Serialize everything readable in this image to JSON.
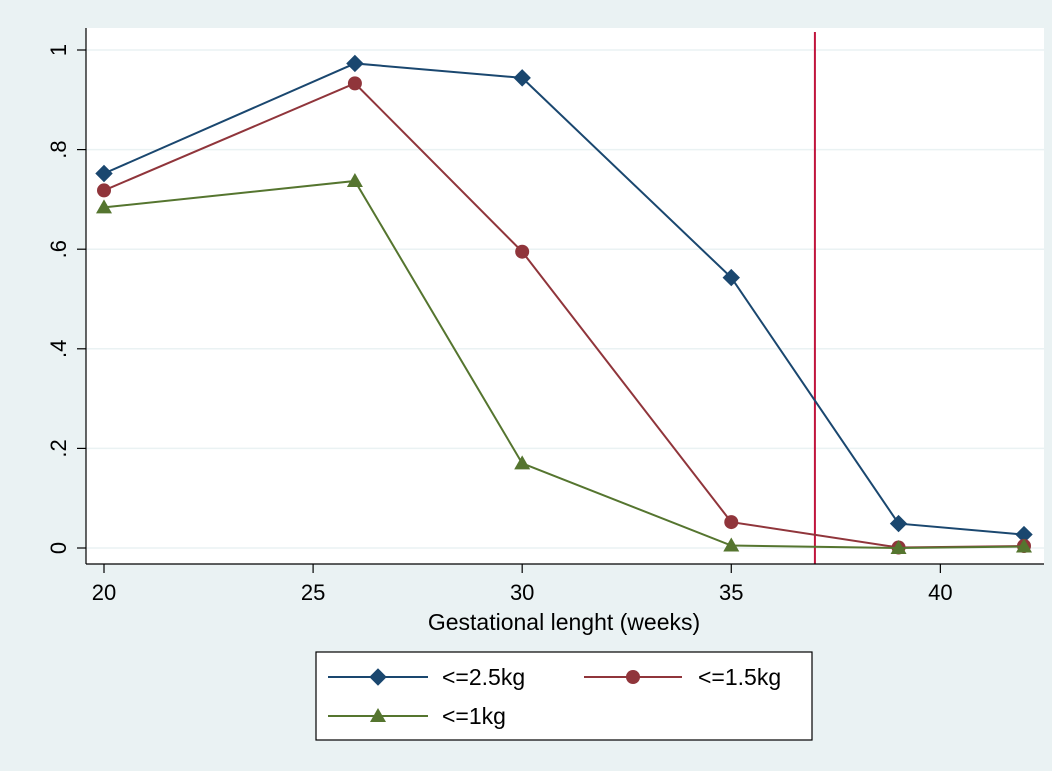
{
  "chart_data": {
    "type": "line",
    "title": "",
    "xlabel": "Gestational lenght (weeks)",
    "ylabel": "",
    "xlim": [
      20,
      42
    ],
    "ylim": [
      0,
      1
    ],
    "x_ticks": [
      20,
      25,
      30,
      35,
      40
    ],
    "x_tick_labels": [
      "20",
      "25",
      "30",
      "35",
      "40"
    ],
    "y_ticks": [
      0,
      0.2,
      0.4,
      0.6,
      0.8,
      1
    ],
    "y_tick_labels": [
      "0",
      ".2",
      ".4",
      ".6",
      ".8",
      "1"
    ],
    "grid": "horizontal",
    "reference_line": {
      "x": 37,
      "color": "#c0143c"
    },
    "legend": {
      "position": "bottom"
    },
    "series": [
      {
        "name": "<=2.5kg",
        "marker": "diamond",
        "color": "#1a476f",
        "x": [
          20,
          26,
          30,
          35,
          39,
          42
        ],
        "y": [
          0.752,
          0.973,
          0.944,
          0.543,
          0.049,
          0.027
        ]
      },
      {
        "name": "<=1.5kg",
        "marker": "circle",
        "color": "#90353b",
        "x": [
          20,
          26,
          30,
          35,
          39,
          42
        ],
        "y": [
          0.718,
          0.933,
          0.595,
          0.052,
          0.001,
          0.004
        ]
      },
      {
        "name": "<=1kg",
        "marker": "triangle",
        "color": "#55752f",
        "x": [
          20,
          26,
          30,
          35,
          39,
          42
        ],
        "y": [
          0.684,
          0.737,
          0.17,
          0.005,
          0.0,
          0.003
        ]
      }
    ]
  }
}
